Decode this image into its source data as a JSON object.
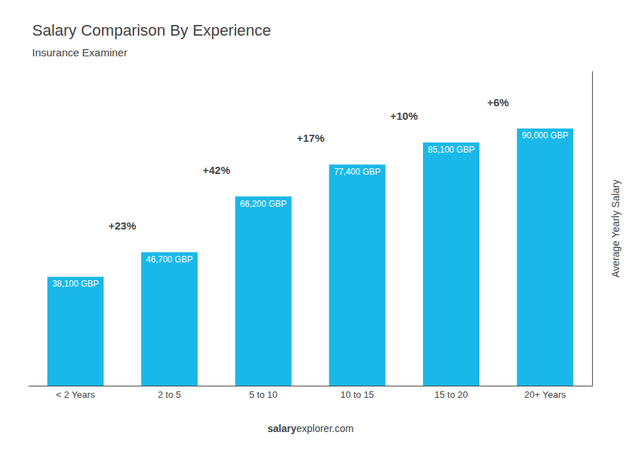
{
  "chart_data": {
    "type": "bar",
    "title": "Salary Comparison By Experience",
    "subtitle": "Insurance Examiner",
    "y_label": "Average Yearly Salary",
    "categories": [
      "< 2 Years",
      "2 to 5",
      "5 to 10",
      "10 to 15",
      "15 to 20",
      "20+ Years"
    ],
    "values": [
      38100,
      46700,
      66200,
      77400,
      85100,
      90000
    ],
    "value_labels": [
      "38,100 GBP",
      "46,700 GBP",
      "66,200 GBP",
      "77,400 GBP",
      "85,100 GBP",
      "90,000 GBP"
    ],
    "data_labels": true,
    "annotations": [
      "+23%",
      "+42%",
      "+17%",
      "+10%",
      "+6%"
    ],
    "footer": [
      "salary",
      "explorer.com"
    ],
    "color": "#1ab8e8",
    "ylim": [
      0,
      110000
    ],
    "tick_labels": "x",
    "grid": false
  }
}
